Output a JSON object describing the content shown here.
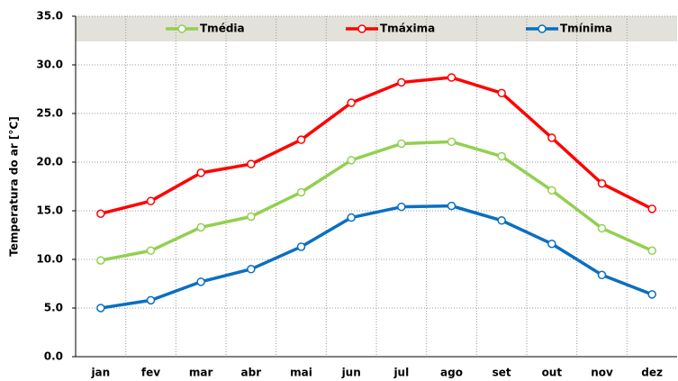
{
  "chart_data": {
    "type": "line",
    "y_label": "Temperatura do ar [°C]",
    "categories": [
      "jan",
      "fev",
      "mar",
      "abr",
      "mai",
      "jun",
      "jul",
      "ago",
      "set",
      "out",
      "nov",
      "dez"
    ],
    "series": [
      {
        "name": "Tmédia",
        "color": "#92d050",
        "values": [
          9.9,
          10.9,
          13.3,
          14.4,
          16.9,
          20.2,
          21.9,
          22.1,
          20.6,
          17.1,
          13.2,
          10.9
        ]
      },
      {
        "name": "Tmáxima",
        "color": "#ff0000",
        "values": [
          14.7,
          16.0,
          18.9,
          19.8,
          22.3,
          26.1,
          28.2,
          28.7,
          27.1,
          22.5,
          17.8,
          15.2
        ]
      },
      {
        "name": "Tmínima",
        "color": "#0a6fc2",
        "values": [
          5.0,
          5.8,
          7.7,
          9.0,
          11.3,
          14.3,
          15.4,
          15.5,
          14.0,
          11.6,
          8.4,
          6.4
        ]
      }
    ],
    "ylim": [
      0,
      35
    ],
    "yticks": [
      {
        "value": 0,
        "label": "0.0"
      },
      {
        "value": 5,
        "label": "5.0"
      },
      {
        "value": 10,
        "label": "10.0"
      },
      {
        "value": 15,
        "label": "15.0"
      },
      {
        "value": 20,
        "label": "20.0"
      },
      {
        "value": 25,
        "label": "25.0"
      },
      {
        "value": 30,
        "label": "30.0"
      },
      {
        "value": 35,
        "label": "35.0"
      }
    ],
    "grid": true,
    "legend": "top"
  }
}
